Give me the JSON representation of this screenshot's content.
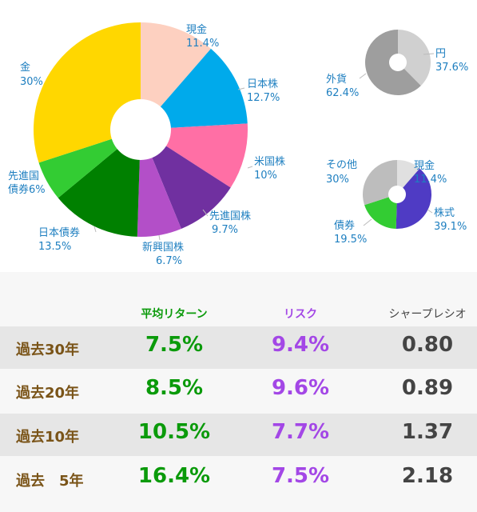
{
  "chart_data": [
    {
      "type": "pie",
      "categories": [
        "現金",
        "日本株",
        "米国株",
        "先進国株",
        "新興国株",
        "日本債券",
        "先進国債券",
        "金"
      ],
      "values": [
        11.4,
        12.7,
        10,
        9.7,
        6.7,
        13.5,
        6,
        30
      ],
      "value_labels": [
        "11.4%",
        "12.7%",
        "10%",
        "9.7%",
        "6.7%",
        "13.5%",
        "6%",
        "30%"
      ],
      "colors": [
        "#fdd0c0",
        "#00aaeb",
        "#ff6fa5",
        "#7030a0",
        "#b34fc8",
        "#008000",
        "#33cc33",
        "#ffd700"
      ],
      "label_lines": [
        [
          "現金",
          "11.4%"
        ],
        [
          "日本株",
          "12.7%"
        ],
        [
          "米国株",
          "10%"
        ],
        [
          "先進国株",
          "9.7%"
        ],
        [
          "新興国株",
          "6.7%"
        ],
        [
          "日本債券",
          "13.5%"
        ],
        [
          "先進国",
          "債券6%"
        ],
        [
          "金",
          "30%"
        ]
      ]
    },
    {
      "type": "pie",
      "categories": [
        "円",
        "外貨"
      ],
      "values": [
        37.6,
        62.4
      ],
      "value_labels": [
        "37.6%",
        "62.4%"
      ],
      "colors": [
        "#d0d0d0",
        "#9e9e9e"
      ]
    },
    {
      "type": "pie",
      "categories": [
        "現金",
        "株式",
        "債券",
        "その他"
      ],
      "values": [
        11.4,
        39.1,
        19.5,
        30
      ],
      "value_labels": [
        "11.4%",
        "39.1%",
        "19.5%",
        "30%"
      ],
      "colors": [
        "#e0e0e0",
        "#4f3bc4",
        "#33cc33",
        "#bdbdbd"
      ]
    },
    {
      "type": "table",
      "columns": [
        "平均リターン",
        "リスク",
        "シャープレシオ"
      ],
      "rows": [
        {
          "label": "過去30年",
          "values": [
            "7.5%",
            "9.4%",
            "0.80"
          ]
        },
        {
          "label": "過去20年",
          "values": [
            "8.5%",
            "9.6%",
            "0.89"
          ]
        },
        {
          "label": "過去10年",
          "values": [
            "10.5%",
            "7.7%",
            "1.37"
          ]
        },
        {
          "label": "過去　5年",
          "values": [
            "16.4%",
            "7.5%",
            "2.18"
          ]
        }
      ]
    }
  ],
  "colors": {
    "return": "#0a9a0a",
    "risk": "#a347e6",
    "sharpe": "#444444",
    "period_label": "#7a5418",
    "chart_label": "#1e7fc0"
  }
}
